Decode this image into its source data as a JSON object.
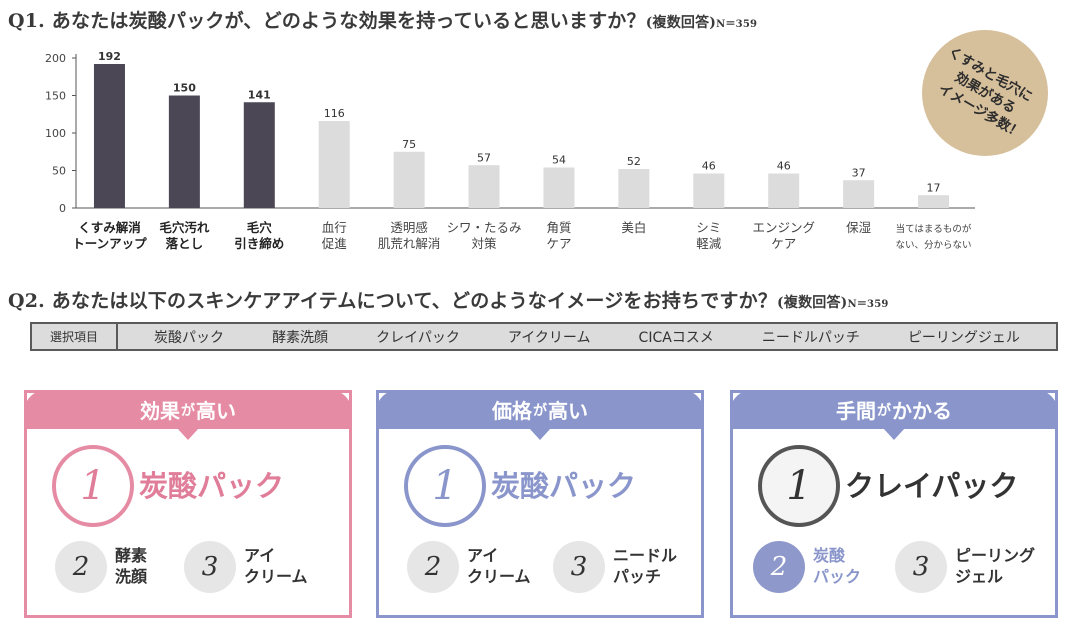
{
  "q1": {
    "title_main": "Q1. あなたは炭酸パックが、どのような効果を持っていると思いますか？",
    "title_sub": "(複数回答)",
    "n_label": "N＝359"
  },
  "chart_data": {
    "type": "bar",
    "title": "Q1. あなたは炭酸パックが、どのような効果を持っていると思いますか？(複数回答)",
    "xlabel": "",
    "ylabel": "",
    "ylim": [
      0,
      200
    ],
    "yticks": [
      0,
      50,
      100,
      150,
      200
    ],
    "grid": false,
    "categories": [
      [
        "くすみ解消",
        "トーンアップ"
      ],
      [
        "毛穴汚れ",
        "落とし"
      ],
      [
        "毛穴",
        "引き締め"
      ],
      [
        "血行",
        "促進"
      ],
      [
        "透明感",
        "肌荒れ解消"
      ],
      [
        "シワ・たるみ",
        "対策"
      ],
      [
        "角質",
        "ケア"
      ],
      [
        "美白"
      ],
      [
        "シミ",
        "軽減"
      ],
      [
        "エンジング",
        "ケア"
      ],
      [
        "保湿"
      ],
      [
        "当てはまるものが",
        "ない、分からない"
      ]
    ],
    "values": [
      192,
      150,
      141,
      116,
      75,
      57,
      54,
      52,
      46,
      46,
      37,
      17
    ],
    "highlight": [
      true,
      true,
      true,
      false,
      false,
      false,
      false,
      false,
      false,
      false,
      false,
      false
    ],
    "colors": {
      "highlight": "#4c4754",
      "normal": "#dcdcdc",
      "axis": "#555555"
    }
  },
  "badge": {
    "text": [
      "くすみと毛穴に",
      "効果がある",
      "イメージ多数！"
    ]
  },
  "q2": {
    "title_main": "Q2. あなたは以下のスキンケアアイテムについて、どのようなイメージをお持ちですか？",
    "title_sub": "(複数回答)",
    "n_label": "N＝359"
  },
  "items_table": {
    "header": "選択項目",
    "items": [
      "炭酸パック",
      "酵素洗顔",
      "クレイパック",
      "アイクリーム",
      "CICAコスメ",
      "ニードルパッチ",
      "ピーリングジェル"
    ]
  },
  "cards": [
    {
      "title_a": "効果",
      "title_ga": "が",
      "title_b": "高い",
      "color": "#e58ca4",
      "text_color": "#e07d98",
      "rank1": {
        "num": "1",
        "label": "炭酸パック"
      },
      "rank2": {
        "num": "2",
        "lines": [
          "酵素",
          "洗顔"
        ]
      },
      "rank3": {
        "num": "3",
        "lines": [
          "アイ",
          "クリーム"
        ]
      }
    },
    {
      "title_a": "価格",
      "title_ga": "が",
      "title_b": "高い",
      "color": "#8a96cb",
      "text_color": "#8a96cb",
      "rank1": {
        "num": "1",
        "label": "炭酸パック"
      },
      "rank2": {
        "num": "2",
        "lines": [
          "アイ",
          "クリーム"
        ]
      },
      "rank3": {
        "num": "3",
        "lines": [
          "ニードル",
          "パッチ"
        ]
      }
    },
    {
      "title_a": "手間",
      "title_ga": "が",
      "title_b": "かかる",
      "color": "#8a96cb",
      "text_color": "#333333",
      "rank1": {
        "num": "1",
        "label": "クレイパック"
      },
      "rank2": {
        "num": "2",
        "lines": [
          "炭酸",
          "パック"
        ]
      },
      "rank3": {
        "num": "3",
        "lines": [
          "ピーリング",
          "ジェル"
        ]
      }
    }
  ]
}
